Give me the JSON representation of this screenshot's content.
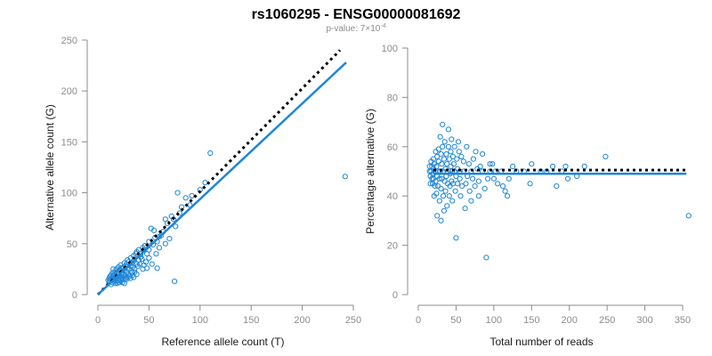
{
  "title": "rs1060295 - ENSG00000081692",
  "subtitle": {
    "prefix": "p-value: 7",
    "times": "×",
    "base": "10",
    "exponent": "-4"
  },
  "colors": {
    "point": "#1f86d6",
    "fit": "#1f86d6",
    "reference": "#000000",
    "axis": "#8c8c8c"
  },
  "chart_data": [
    {
      "type": "scatter",
      "name": "left",
      "xlabel": "Reference allele count (T)",
      "ylabel": "Alternative allele count (G)",
      "xlim": [
        0,
        250
      ],
      "ylim": [
        0,
        250
      ],
      "xticks": [
        0,
        50,
        100,
        150,
        200,
        250
      ],
      "yticks": [
        0,
        50,
        100,
        150,
        200,
        250
      ],
      "fit_line": {
        "x": [
          0,
          243
        ],
        "y": [
          0,
          228
        ]
      },
      "reference_line": {
        "x": [
          0,
          237
        ],
        "y": [
          0,
          240
        ]
      },
      "points": [
        [
          242,
          116
        ],
        [
          110,
          139
        ],
        [
          105,
          110
        ],
        [
          100,
          103
        ],
        [
          90,
          88
        ],
        [
          92,
          97
        ],
        [
          86,
          95
        ],
        [
          82,
          86
        ],
        [
          80,
          80
        ],
        [
          78,
          100
        ],
        [
          76,
          67
        ],
        [
          74,
          74
        ],
        [
          72,
          77
        ],
        [
          68,
          70
        ],
        [
          66,
          74
        ],
        [
          64,
          62
        ],
        [
          62,
          58
        ],
        [
          60,
          57
        ],
        [
          58,
          52
        ],
        [
          56,
          56
        ],
        [
          55,
          63
        ],
        [
          54,
          49
        ],
        [
          52,
          65
        ],
        [
          50,
          52
        ],
        [
          50,
          44
        ],
        [
          48,
          40
        ],
        [
          46,
          48
        ],
        [
          45,
          44
        ],
        [
          44,
          46
        ],
        [
          42,
          40
        ],
        [
          42,
          37
        ],
        [
          40,
          44
        ],
        [
          40,
          34
        ],
        [
          39,
          28
        ],
        [
          38,
          30
        ],
        [
          38,
          42
        ],
        [
          37,
          40
        ],
        [
          36,
          25
        ],
        [
          35,
          33
        ],
        [
          35,
          38
        ],
        [
          34,
          27
        ],
        [
          33,
          31
        ],
        [
          33,
          22
        ],
        [
          32,
          36
        ],
        [
          32,
          28
        ],
        [
          31,
          25
        ],
        [
          30,
          32
        ],
        [
          30,
          20
        ],
        [
          29,
          26
        ],
        [
          29,
          34
        ],
        [
          28,
          22
        ],
        [
          28,
          30
        ],
        [
          27,
          18
        ],
        [
          27,
          28
        ],
        [
          26,
          24
        ],
        [
          26,
          31
        ],
        [
          25,
          20
        ],
        [
          25,
          27
        ],
        [
          24,
          22
        ],
        [
          24,
          17
        ],
        [
          23,
          26
        ],
        [
          23,
          20
        ],
        [
          22,
          23
        ],
        [
          22,
          15
        ],
        [
          22,
          29
        ],
        [
          21,
          18
        ],
        [
          21,
          24
        ],
        [
          20,
          20
        ],
        [
          20,
          14
        ],
        [
          20,
          27
        ],
        [
          19,
          16
        ],
        [
          19,
          22
        ],
        [
          18,
          18
        ],
        [
          18,
          13
        ],
        [
          18,
          25
        ],
        [
          17,
          20
        ],
        [
          17,
          15
        ],
        [
          17,
          11
        ],
        [
          16,
          17
        ],
        [
          16,
          22
        ],
        [
          16,
          13
        ],
        [
          15,
          19
        ],
        [
          15,
          15
        ],
        [
          15,
          25
        ],
        [
          14,
          17
        ],
        [
          14,
          12
        ],
        [
          14,
          21
        ],
        [
          13,
          15
        ],
        [
          13,
          19
        ],
        [
          13,
          10
        ],
        [
          12,
          14
        ],
        [
          12,
          18
        ],
        [
          11,
          16
        ],
        [
          11,
          12
        ],
        [
          10,
          14
        ],
        [
          26,
          11
        ],
        [
          28,
          15
        ],
        [
          32,
          16
        ],
        [
          35,
          17
        ],
        [
          38,
          20
        ],
        [
          44,
          25
        ],
        [
          47,
          32
        ],
        [
          50,
          36
        ],
        [
          53,
          30
        ],
        [
          57,
          40
        ],
        [
          60,
          46
        ],
        [
          43,
          35
        ],
        [
          45,
          29
        ],
        [
          48,
          26
        ],
        [
          41,
          30
        ],
        [
          36,
          22
        ],
        [
          34,
          19
        ],
        [
          31,
          18
        ],
        [
          24,
          12
        ],
        [
          19,
          11
        ],
        [
          21,
          12
        ],
        [
          23,
          14
        ],
        [
          25,
          15
        ],
        [
          27,
          16
        ],
        [
          29,
          17
        ],
        [
          75,
          13
        ],
        [
          66,
          50
        ],
        [
          70,
          55
        ],
        [
          58,
          26
        ]
      ]
    },
    {
      "type": "scatter",
      "name": "right",
      "xlabel": "Total number of reads",
      "ylabel": "Percentage alternative (G)",
      "xlim": [
        0,
        350
      ],
      "ylim": [
        0,
        100
      ],
      "xticks": [
        0,
        50,
        100,
        150,
        200,
        250,
        300,
        350
      ],
      "yticks": [
        0,
        20,
        40,
        60,
        80,
        100
      ],
      "fit_line": {
        "x": [
          20,
          355
        ],
        "y": [
          49,
          49
        ]
      },
      "reference_line": {
        "x": [
          20,
          355
        ],
        "y": [
          50.5,
          50.5
        ]
      },
      "points": [
        [
          358,
          32
        ],
        [
          248,
          56
        ],
        [
          220,
          52
        ],
        [
          210,
          48
        ],
        [
          198,
          47
        ],
        [
          195,
          52
        ],
        [
          190,
          50
        ],
        [
          183,
          44
        ],
        [
          178,
          52
        ],
        [
          170,
          50
        ],
        [
          162,
          50
        ],
        [
          150,
          53
        ],
        [
          148,
          45
        ],
        [
          140,
          50
        ],
        [
          130,
          50
        ],
        [
          125,
          52
        ],
        [
          120,
          47
        ],
        [
          118,
          40
        ],
        [
          115,
          42
        ],
        [
          112,
          44
        ],
        [
          110,
          50
        ],
        [
          105,
          45
        ],
        [
          102,
          50
        ],
        [
          100,
          47
        ],
        [
          98,
          53
        ],
        [
          95,
          50
        ],
        [
          95,
          53
        ],
        [
          92,
          47
        ],
        [
          90,
          15
        ],
        [
          88,
          43
        ],
        [
          85,
          50
        ],
        [
          85,
          57
        ],
        [
          82,
          52
        ],
        [
          80,
          46
        ],
        [
          80,
          40
        ],
        [
          78,
          51
        ],
        [
          76,
          58
        ],
        [
          75,
          44
        ],
        [
          73,
          55
        ],
        [
          72,
          47
        ],
        [
          70,
          50
        ],
        [
          70,
          38
        ],
        [
          68,
          42
        ],
        [
          67,
          53
        ],
        [
          65,
          48
        ],
        [
          64,
          60
        ],
        [
          63,
          45
        ],
        [
          62,
          35
        ],
        [
          60,
          50
        ],
        [
          60,
          54
        ],
        [
          58,
          44
        ],
        [
          57,
          56
        ],
        [
          56,
          40
        ],
        [
          55,
          50
        ],
        [
          55,
          47
        ],
        [
          54,
          58
        ],
        [
          53,
          62
        ],
        [
          52,
          45
        ],
        [
          52,
          51
        ],
        [
          51,
          55
        ],
        [
          50,
          23
        ],
        [
          50,
          48
        ],
        [
          49,
          42
        ],
        [
          48,
          60
        ],
        [
          48,
          50
        ],
        [
          47,
          53
        ],
        [
          46,
          45
        ],
        [
          46,
          56
        ],
        [
          45,
          38
        ],
        [
          45,
          50
        ],
        [
          44,
          63
        ],
        [
          44,
          46
        ],
        [
          43,
          52
        ],
        [
          43,
          58
        ],
        [
          42,
          44
        ],
        [
          42,
          49
        ],
        [
          41,
          55
        ],
        [
          41,
          40
        ],
        [
          40,
          67
        ],
        [
          40,
          60
        ],
        [
          39,
          50
        ],
        [
          39,
          45
        ],
        [
          38,
          53
        ],
        [
          38,
          36
        ],
        [
          37,
          48
        ],
        [
          37,
          57
        ],
        [
          36,
          42
        ],
        [
          36,
          51
        ],
        [
          35,
          62
        ],
        [
          35,
          46
        ],
        [
          34,
          34
        ],
        [
          34,
          55
        ],
        [
          33,
          50
        ],
        [
          33,
          40
        ],
        [
          32,
          69
        ],
        [
          32,
          60
        ],
        [
          31,
          47
        ],
        [
          31,
          53
        ],
        [
          30,
          30
        ],
        [
          30,
          43
        ],
        [
          30,
          57
        ],
        [
          29,
          50
        ],
        [
          29,
          64
        ],
        [
          28,
          38
        ],
        [
          28,
          47
        ],
        [
          27,
          54
        ],
        [
          27,
          59
        ],
        [
          26,
          44
        ],
        [
          26,
          50
        ],
        [
          25,
          32
        ],
        [
          25,
          48
        ],
        [
          25,
          56
        ],
        [
          24,
          41
        ],
        [
          24,
          52
        ],
        [
          23,
          46
        ],
        [
          23,
          58
        ],
        [
          22,
          50
        ],
        [
          22,
          44
        ],
        [
          21,
          53
        ],
        [
          21,
          40
        ],
        [
          20,
          47
        ],
        [
          20,
          55
        ],
        [
          20,
          51
        ],
        [
          19,
          45
        ],
        [
          19,
          49
        ],
        [
          18,
          52
        ],
        [
          18,
          47
        ],
        [
          17,
          50
        ],
        [
          17,
          54
        ],
        [
          16,
          48
        ],
        [
          16,
          45
        ],
        [
          15,
          52
        ],
        [
          15,
          50
        ]
      ]
    }
  ]
}
